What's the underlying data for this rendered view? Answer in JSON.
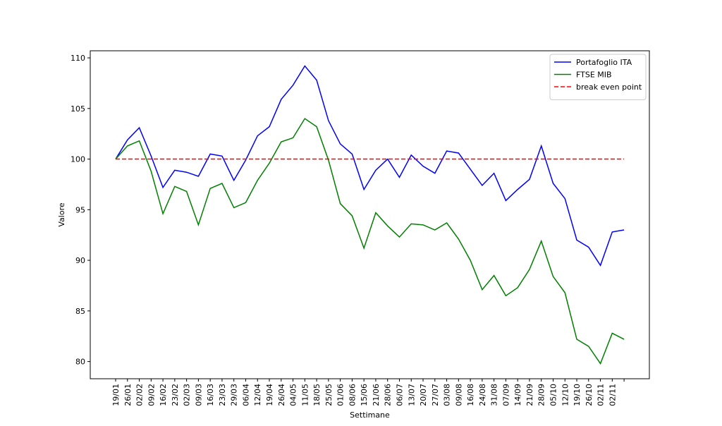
{
  "chart_data": {
    "type": "line",
    "title": "",
    "xlabel": "Settimane",
    "ylabel": "Valore",
    "ylim": [
      78.3,
      110.7
    ],
    "yticks": [
      80,
      85,
      90,
      95,
      100,
      105,
      110
    ],
    "grid": false,
    "legend_position": "top-right",
    "categories": [
      "19/01",
      "26/01",
      "02/02",
      "09/02",
      "16/02",
      "23/02",
      "02/03",
      "09/03",
      "16/03",
      "23/03",
      "29/03",
      "06/04",
      "12/04",
      "19/04",
      "26/04",
      "04/05",
      "11/05",
      "18/05",
      "25/05",
      "01/06",
      "08/06",
      "15/06",
      "21/06",
      "28/06",
      "06/07",
      "13/07",
      "20/07",
      "27/07",
      "03/08",
      "09/08",
      "16/08",
      "24/08",
      "31/08",
      "07/09",
      "14/09",
      "21/09",
      "28/09",
      "05/10",
      "12/10",
      "19/10",
      "26/10",
      "02/11",
      "02/11",
      ""
    ],
    "series": [
      {
        "name": "Portafoglio ITA",
        "color": "#0000ff",
        "style": "solid",
        "values": [
          100.0,
          101.9,
          103.1,
          100.3,
          97.2,
          98.9,
          98.7,
          98.3,
          100.5,
          100.3,
          97.9,
          99.9,
          102.3,
          103.2,
          105.9,
          107.3,
          109.2,
          107.8,
          103.8,
          101.5,
          100.5,
          97.0,
          98.9,
          100.0,
          98.2,
          100.4,
          99.3,
          98.6,
          100.8,
          100.6,
          99.0,
          97.4,
          98.6,
          95.9,
          97.0,
          98.0,
          101.3,
          97.6,
          96.1,
          92.0,
          91.3,
          89.5,
          92.8,
          93.0
        ]
      },
      {
        "name": "FTSE MIB",
        "color": "#008000",
        "style": "solid",
        "values": [
          100.0,
          101.3,
          101.8,
          98.8,
          94.6,
          97.3,
          96.8,
          93.5,
          97.1,
          97.6,
          95.2,
          95.7,
          97.9,
          99.6,
          101.7,
          102.1,
          104.0,
          103.2,
          99.9,
          95.6,
          94.4,
          91.2,
          94.7,
          93.4,
          92.3,
          93.6,
          93.5,
          93.0,
          93.7,
          92.1,
          90.0,
          87.1,
          88.5,
          86.5,
          87.3,
          89.1,
          91.9,
          88.4,
          86.8,
          82.2,
          81.5,
          79.8,
          82.8,
          82.2
        ]
      },
      {
        "name": "break even point",
        "color": "#ff0000",
        "style": "dashed",
        "values": [
          100,
          100,
          100,
          100,
          100,
          100,
          100,
          100,
          100,
          100,
          100,
          100,
          100,
          100,
          100,
          100,
          100,
          100,
          100,
          100,
          100,
          100,
          100,
          100,
          100,
          100,
          100,
          100,
          100,
          100,
          100,
          100,
          100,
          100,
          100,
          100,
          100,
          100,
          100,
          100,
          100,
          100,
          100,
          100
        ]
      }
    ]
  }
}
